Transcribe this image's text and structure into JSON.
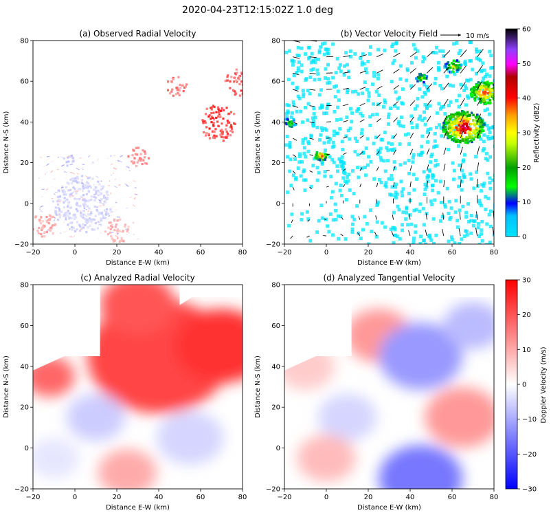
{
  "figure_title": "2020-04-23T12:15:02Z 1.0 deg",
  "chart_data": [
    {
      "type": "heatmap",
      "title": "(a) Observed Radial Velocity",
      "xlabel": "Distance E-W (km)",
      "ylabel": "Distance N-S (km)",
      "xlim": [
        -20,
        80
      ],
      "ylim": [
        -20,
        80
      ],
      "xticks": [
        -20,
        0,
        20,
        40,
        60,
        80
      ],
      "yticks": [
        -20,
        0,
        20,
        40,
        60,
        80
      ],
      "field": "Doppler velocity",
      "features": [
        {
          "x": 68,
          "y": 40,
          "r": 9,
          "value": 25
        },
        {
          "x": 78,
          "y": 60,
          "r": 7,
          "value": 22
        },
        {
          "x": 48,
          "y": 58,
          "r": 5,
          "value": 18
        },
        {
          "x": 30,
          "y": 23,
          "r": 5,
          "value": 15
        },
        {
          "x": 3,
          "y": 0,
          "r": 14,
          "value": -6
        },
        {
          "x": 20,
          "y": -13,
          "r": 6,
          "value": 10
        },
        {
          "x": -15,
          "y": -10,
          "r": 6,
          "value": 12
        },
        {
          "x": -4,
          "y": 22,
          "r": 3,
          "value": -8
        }
      ]
    },
    {
      "type": "heatmap",
      "title": "(b) Vector Velocity Field",
      "xlabel": "Distance E-W (km)",
      "ylabel": "Distance N-S (km)",
      "xlim": [
        -20,
        80
      ],
      "ylim": [
        -20,
        80
      ],
      "xticks": [
        -20,
        0,
        20,
        40,
        60,
        80
      ],
      "yticks": [
        -20,
        0,
        20,
        40,
        60,
        80
      ],
      "field": "Reflectivity",
      "quiver_key": "10 m/s",
      "reflectivity_cells": [
        {
          "x": 65,
          "y": 38,
          "r": 10,
          "dbz": 48
        },
        {
          "x": 75,
          "y": 55,
          "r": 7,
          "dbz": 42
        },
        {
          "x": 60,
          "y": 68,
          "r": 4,
          "dbz": 30
        },
        {
          "x": 45,
          "y": 62,
          "r": 3,
          "dbz": 25
        },
        {
          "x": -3,
          "y": 24,
          "r": 3,
          "dbz": 40
        },
        {
          "x": -18,
          "y": 40,
          "r": 3,
          "dbz": 20
        }
      ]
    },
    {
      "type": "heatmap",
      "title": "(c) Analyzed Radial Velocity",
      "xlabel": "Distance E-W (km)",
      "ylabel": "Distance N-S (km)",
      "xlim": [
        -20,
        80
      ],
      "ylim": [
        -20,
        80
      ],
      "xticks": [
        -20,
        0,
        20,
        40,
        60,
        80
      ],
      "yticks": [
        -20,
        0,
        20,
        40,
        60,
        80
      ],
      "field": "Doppler velocity"
    },
    {
      "type": "heatmap",
      "title": "(d) Analyzed Tangential Velocity",
      "xlabel": "Distance E-W (km)",
      "ylabel": "Distance N-S (km)",
      "xlim": [
        -20,
        80
      ],
      "ylim": [
        -20,
        80
      ],
      "xticks": [
        -20,
        0,
        20,
        40,
        60,
        80
      ],
      "yticks": [
        -20,
        0,
        20,
        40,
        60,
        80
      ],
      "field": "Doppler velocity"
    }
  ],
  "colorbars": {
    "reflectivity": {
      "label": "Reflectivity (dBZ)",
      "range": [
        0,
        60
      ],
      "ticks": [
        0,
        10,
        20,
        30,
        40,
        50,
        60
      ],
      "colors": [
        "#00e5ff",
        "#0066ff",
        "#0000ff",
        "#00ff00",
        "#00a000",
        "#ffff00",
        "#ffa500",
        "#ff0000",
        "#a00000",
        "#ff00ff",
        "#8000ff",
        "#000000"
      ]
    },
    "velocity": {
      "label": "Doppler Velocity (m/s)",
      "range": [
        -30,
        30
      ],
      "ticks": [
        -30,
        -20,
        -10,
        0,
        10,
        20,
        30
      ],
      "colors": [
        "#0000ff",
        "#ffffff",
        "#ff0000"
      ]
    }
  }
}
